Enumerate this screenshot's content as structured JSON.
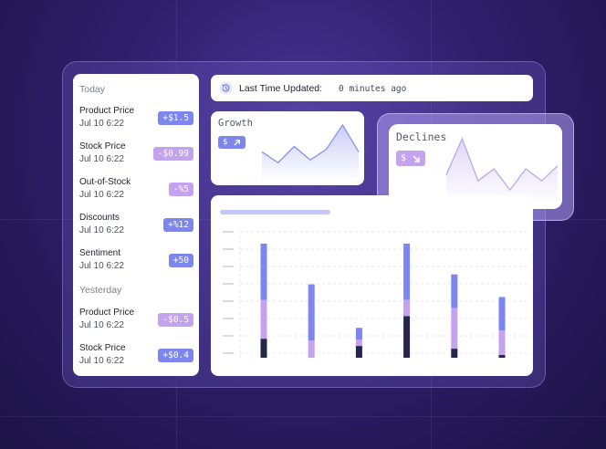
{
  "sidebar": {
    "today_label": "Today",
    "yesterday_label": "Yesterday",
    "today_items": [
      {
        "name": "Product Price",
        "date": "Jul 10 6:22",
        "change": "+$1.5",
        "direction": "up"
      },
      {
        "name": "Stock Price",
        "date": "Jul 10 6:22",
        "change": "-$0.99",
        "direction": "down"
      },
      {
        "name": "Out-of-Stock",
        "date": "Jul 10 6:22",
        "change": "-%5",
        "direction": "down"
      },
      {
        "name": "Discounts",
        "date": "Jul 10 6:22",
        "change": "+%12",
        "direction": "up"
      },
      {
        "name": "Sentiment",
        "date": "Jul 10 6:22",
        "change": "+50",
        "direction": "up"
      }
    ],
    "yesterday_items": [
      {
        "name": "Product Price",
        "date": "Jul 10 6:22",
        "change": "-$0.5",
        "direction": "down"
      },
      {
        "name": "Stock Price",
        "date": "Jul 10 6:22",
        "change": "+$0.4",
        "direction": "up"
      }
    ]
  },
  "status": {
    "label": "Last Time Updated:",
    "value": "0 minutes ago",
    "icon": "history-icon"
  },
  "growth": {
    "title": "Growth",
    "badge": "$",
    "icon": "arrow-up-right-icon",
    "trend": [
      0.45,
      0.25,
      0.55,
      0.3,
      0.5,
      0.95,
      0.45
    ]
  },
  "declines": {
    "title": "Declines",
    "badge": "$",
    "icon": "arrow-down-right-icon",
    "trend": [
      0.4,
      1.0,
      0.3,
      0.5,
      0.15,
      0.5,
      0.3,
      0.55
    ]
  },
  "colors": {
    "up": "#7d86ee",
    "down": "#c4a2ee",
    "dark": "#24264a",
    "chart_fill": "#d5d3fb"
  },
  "chart_data": {
    "type": "bar",
    "title": "",
    "categories": [
      "",
      "",
      "",
      "",
      "",
      ""
    ],
    "series": [
      {
        "values": [
          21,
          0,
          13,
          46,
          10,
          3
        ]
      },
      {
        "values": [
          43,
          19,
          7,
          18,
          45,
          27
        ]
      },
      {
        "values": [
          62,
          62,
          13,
          62,
          37,
          37
        ]
      }
    ],
    "ylim": [
      0,
      135
    ],
    "grid": true
  }
}
